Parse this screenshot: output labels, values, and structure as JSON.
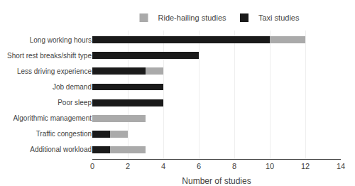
{
  "chart_data": {
    "type": "bar",
    "orientation": "horizontal",
    "stacked": true,
    "categories": [
      "Additional workload",
      "Traffic congestion",
      "Algorithmic management",
      "Poor sleep",
      "Job demand",
      "Less driving experience",
      "Short rest breaks/shift type",
      "Long working hours"
    ],
    "series": [
      {
        "name": "Taxi studies",
        "color": "#1a1a1a",
        "values": [
          1,
          1,
          0,
          4,
          4,
          3,
          6,
          10
        ]
      },
      {
        "name": "Ride-hailing studies",
        "color": "#aaaaaa",
        "values": [
          2,
          1,
          3,
          0,
          0,
          1,
          0,
          2
        ]
      }
    ],
    "xlabel": "Number of studies",
    "xlim": [
      0,
      14
    ],
    "xticks": [
      0,
      2,
      4,
      6,
      8,
      10,
      12,
      14
    ],
    "grid": true,
    "legend": "top"
  }
}
